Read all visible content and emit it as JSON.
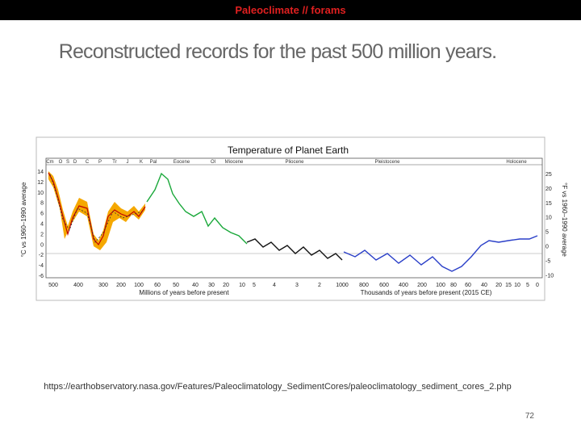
{
  "header": {
    "title": "Paleoclimate // forams"
  },
  "slide": {
    "title": "Reconstructed records for the past 500 million years.",
    "source": "https://earthobservatory.nasa.gov/Features/Paleoclimatology_SedimentCores/paleoclimatology_sediment_cores_2.php",
    "page_number": "72"
  },
  "figure": {
    "title": "Temperature of Planet Earth",
    "periods": [
      "Cm",
      "O",
      "S",
      "D",
      "C",
      "P",
      "Tr",
      "J",
      "K",
      "Pal",
      "Eocene",
      "Ol",
      "Miocene",
      "Pliocene",
      "Pleistocene",
      "Holocene"
    ],
    "left_ticks": [
      "14",
      "12",
      "10",
      "8",
      "6",
      "4",
      "2",
      "0",
      "-2",
      "-4",
      "-6"
    ],
    "right_ticks": [
      "25",
      "20",
      "15",
      "10",
      "5",
      "0",
      "-5",
      "-10"
    ],
    "x_ticks": [
      "500",
      "400",
      "300",
      "200",
      "100",
      "60",
      "50",
      "40",
      "30",
      "20",
      "10",
      "5",
      "4",
      "3",
      "2",
      "1000",
      "800",
      "600",
      "400",
      "200",
      "100",
      "80",
      "60",
      "40",
      "20",
      "15",
      "10",
      "5",
      "0"
    ],
    "x_label_left": "Millions of years before present",
    "x_label_right": "Thousands of years before present (2015 CE)",
    "y_label_left": "°C vs 1960–1990 average",
    "y_label_right": "°F vs 1960–1990 average"
  }
}
